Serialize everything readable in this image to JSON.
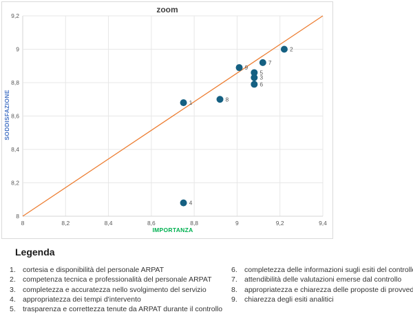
{
  "chart_data": {
    "type": "scatter",
    "title": "zoom",
    "xlabel": "IMPORTANZA",
    "ylabel": "SODDISFAZIONE",
    "xlim": [
      8,
      9.4
    ],
    "ylim": [
      8,
      9.2
    ],
    "grid": true,
    "legend_position": "below",
    "x_ticks": [
      {
        "v": 8,
        "label": "8"
      },
      {
        "v": 8.2,
        "label": "8,2"
      },
      {
        "v": 8.4,
        "label": "8,4"
      },
      {
        "v": 8.6,
        "label": "8,6"
      },
      {
        "v": 8.8,
        "label": "8,8"
      },
      {
        "v": 9,
        "label": "9"
      },
      {
        "v": 9.2,
        "label": "9,2"
      },
      {
        "v": 9.4,
        "label": "9,4"
      }
    ],
    "y_ticks": [
      {
        "v": 8,
        "label": "8"
      },
      {
        "v": 8.2,
        "label": "8,2"
      },
      {
        "v": 8.4,
        "label": "8,4"
      },
      {
        "v": 8.6,
        "label": "8,6"
      },
      {
        "v": 8.8,
        "label": "8,8"
      },
      {
        "v": 9,
        "label": "9"
      },
      {
        "v": 9.2,
        "label": "9,2"
      }
    ],
    "points": [
      {
        "label": "1",
        "x": 8.75,
        "y": 8.68
      },
      {
        "label": "2",
        "x": 9.22,
        "y": 9.0
      },
      {
        "label": "3",
        "x": 9.08,
        "y": 8.83
      },
      {
        "label": "4",
        "x": 8.75,
        "y": 8.08
      },
      {
        "label": "5",
        "x": 9.08,
        "y": 8.86
      },
      {
        "label": "6",
        "x": 9.08,
        "y": 8.79
      },
      {
        "label": "7",
        "x": 9.12,
        "y": 8.92
      },
      {
        "label": "8",
        "x": 8.92,
        "y": 8.7
      },
      {
        "label": "9",
        "x": 9.01,
        "y": 8.89
      }
    ],
    "reference_line": {
      "x1": 8,
      "y1": 8,
      "x2": 9.4,
      "y2": 9.2,
      "color": "#ED7D31"
    },
    "colors": {
      "point": "#156082",
      "point_label": "#595959",
      "xlabel": "#00B050",
      "ylabel": "#4472C4",
      "grid": "#E7E7E7",
      "axis": "#D5D5D5",
      "tick_label": "#595959",
      "title": "#404040"
    }
  },
  "legend": {
    "title": "Legenda",
    "columns": [
      [
        {
          "num": "1.",
          "text": "cortesia e disponibilità del personale ARPAT"
        },
        {
          "num": "2.",
          "text": "competenza tecnica e professionalità del personale ARPAT"
        },
        {
          "num": "3.",
          "text": "completezza e accuratezza nello svolgimento del servizio"
        },
        {
          "num": "4.",
          "text": "appropriatezza dei tempi d'intervento"
        },
        {
          "num": "5.",
          "text": "trasparenza e correttezza tenute da ARPAT durante il controllo"
        }
      ],
      [
        {
          "num": "6.",
          "text": "completezza delle informazioni sugli esiti del controllo"
        },
        {
          "num": "7.",
          "text": "attendibilità delle valutazioni emerse dal controllo"
        },
        {
          "num": "8.",
          "text": "appropriatezza e chiarezza delle proposte di provvedimenti"
        },
        {
          "num": "9.",
          "text": "chiarezza degli esiti analitici"
        }
      ]
    ]
  }
}
